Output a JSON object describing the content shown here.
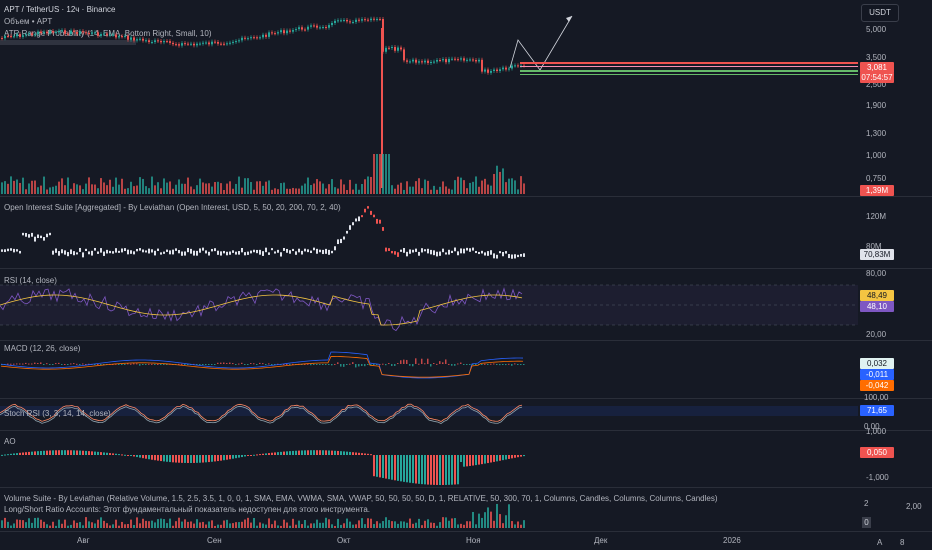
{
  "colors": {
    "bg": "#151924",
    "up": "#26a69a",
    "down": "#ef5350",
    "rsi_line": "#7e57c2",
    "rsi_ma": "#f4c542",
    "macd_line": "#2962ff",
    "signal_line": "#ff6d00",
    "text": "#b2b5be",
    "white": "#ffffff"
  },
  "header": {
    "symbol": "APT / TetherUS · 12ч · Binance",
    "volume_label": "Объем • APT",
    "indicator": "ATR Range Probability (14, EMA, Bottom Right, Small, 10)"
  },
  "currency_button": "USDT",
  "price_axis": {
    "labels": [
      "5,000",
      "3,500",
      "2,500",
      "1,900",
      "1,300",
      "1,000",
      "0,750"
    ],
    "price_tag": "3,081",
    "countdown": "07:54:57",
    "volume_tag": "1,39M"
  },
  "panels": {
    "oi": {
      "title": "Open Interest Suite [Aggregated] - By Leviathan (Open Interest, USD, 5, 50, 20, 200, 70, 2, 40)",
      "labels": [
        "120M",
        "80M"
      ],
      "tag": "70,83M"
    },
    "rsi": {
      "title": "RSI (14, close)",
      "labels": [
        "80,00",
        "20,00"
      ],
      "tag_ma": "48,49",
      "tag_rsi": "48,10"
    },
    "macd": {
      "title": "MACD (12, 26, close)",
      "tag_hist": "0,032",
      "tag_macd": "-0,011",
      "tag_signal": "-0,042"
    },
    "stoch": {
      "title": "Stoch RSI (3, 3, 14, 14, close)",
      "labels": [
        "100,00",
        "0,00"
      ],
      "tag": "71,65"
    },
    "ao": {
      "title": "AO",
      "labels": [
        "1,000",
        "-1,000"
      ],
      "tag": "0,050"
    },
    "volume_suite": {
      "title": "Volume Suite - By Leviathan (Relative Volume, 1.5, 2.5, 3.5, 1, 0, 0, 1, SMA, EMA, VWMA, SMA, VWAP, 50, 50, 50, 50, D, 1, RELATIVE, 50, 300, 70, 1, Columns, Candles, Columns, Columns, Candles)",
      "second": "Long/Short Ratio Accounts: Этот фундаментальный показатель недоступен для этого инструмента.",
      "labels": [
        "2",
        "2,00",
        "0"
      ]
    }
  },
  "time_axis": [
    "Авг",
    "Сен",
    "Окт",
    "Ноя",
    "Дек",
    "2026"
  ],
  "corner": [
    "A",
    "8"
  ]
}
